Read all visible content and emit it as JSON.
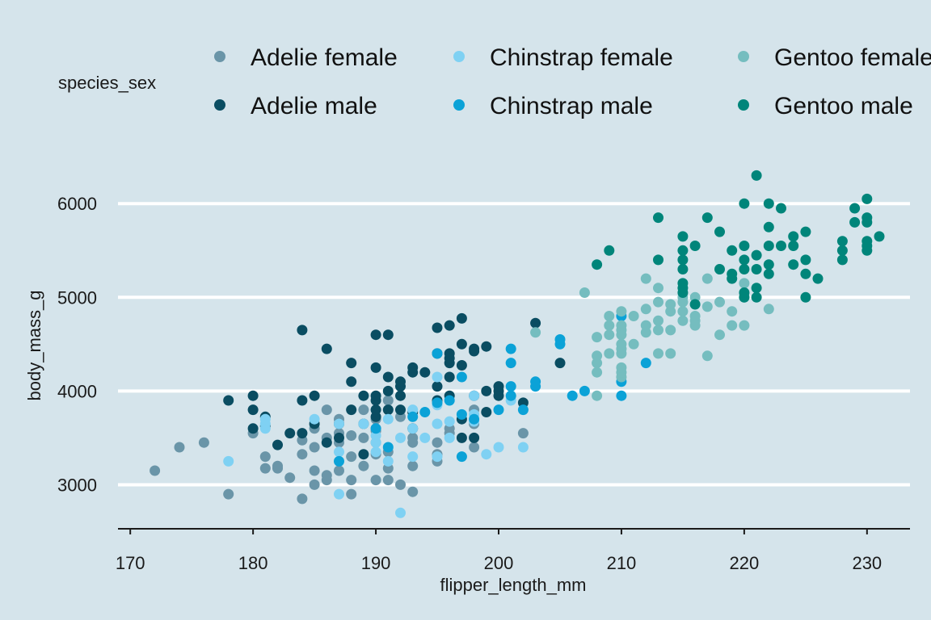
{
  "chart_data": {
    "type": "scatter",
    "xlabel": "flipper_length_mm",
    "ylabel": "body_mass_g",
    "xlim": [
      169,
      233.5
    ],
    "ylim": [
      2530,
      6450
    ],
    "x_ticks": [
      "170",
      "180",
      "190",
      "200",
      "210",
      "220",
      "230"
    ],
    "y_ticks": [
      "3000",
      "4000",
      "5000",
      "6000"
    ],
    "grid": "horizontal major lines",
    "legend_title": "species_sex",
    "legend_position": "top",
    "series": [
      {
        "name": "Adelie female",
        "color": "#6a95a8",
        "points": [
          [
            172,
            3150
          ],
          [
            174,
            3400
          ],
          [
            176,
            3450
          ],
          [
            178,
            2900
          ],
          [
            180,
            3550
          ],
          [
            181,
            3300
          ],
          [
            181,
            3175
          ],
          [
            182,
            3175
          ],
          [
            182,
            3200
          ],
          [
            183,
            3075
          ],
          [
            184,
            2850
          ],
          [
            184,
            3325
          ],
          [
            184,
            3475
          ],
          [
            185,
            3000
          ],
          [
            185,
            3150
          ],
          [
            185,
            3400
          ],
          [
            185,
            3600
          ],
          [
            186,
            3050
          ],
          [
            186,
            3100
          ],
          [
            186,
            3500
          ],
          [
            186,
            3800
          ],
          [
            187,
            3150
          ],
          [
            187,
            3450
          ],
          [
            187,
            3550
          ],
          [
            187,
            3700
          ],
          [
            188,
            2900
          ],
          [
            188,
            3050
          ],
          [
            188,
            3300
          ],
          [
            188,
            3525
          ],
          [
            189,
            3200
          ],
          [
            189,
            3500
          ],
          [
            189,
            3800
          ],
          [
            190,
            3050
          ],
          [
            190,
            3325
          ],
          [
            190,
            3450
          ],
          [
            190,
            3575
          ],
          [
            190,
            3600
          ],
          [
            190,
            3700
          ],
          [
            191,
            3050
          ],
          [
            191,
            3175
          ],
          [
            191,
            3350
          ],
          [
            191,
            3900
          ],
          [
            192,
            3000
          ],
          [
            192,
            3725
          ],
          [
            193,
            2925
          ],
          [
            193,
            3200
          ],
          [
            193,
            3450
          ],
          [
            193,
            3500
          ],
          [
            195,
            3250
          ],
          [
            195,
            3325
          ],
          [
            195,
            3450
          ],
          [
            196,
            3550
          ],
          [
            196,
            3600
          ],
          [
            198,
            3400
          ],
          [
            198,
            3650
          ],
          [
            198,
            3800
          ],
          [
            202,
            3550
          ]
        ]
      },
      {
        "name": "Adelie male",
        "color": "#0a4d62",
        "points": [
          [
            178,
            3900
          ],
          [
            180,
            3600
          ],
          [
            180,
            3800
          ],
          [
            180,
            3950
          ],
          [
            181,
            3625
          ],
          [
            181,
            3725
          ],
          [
            182,
            3425
          ],
          [
            183,
            3550
          ],
          [
            184,
            3550
          ],
          [
            184,
            3900
          ],
          [
            184,
            4650
          ],
          [
            185,
            3650
          ],
          [
            185,
            3950
          ],
          [
            186,
            3450
          ],
          [
            186,
            4450
          ],
          [
            187,
            3500
          ],
          [
            187,
            3650
          ],
          [
            188,
            3800
          ],
          [
            188,
            4100
          ],
          [
            188,
            4300
          ],
          [
            189,
            3325
          ],
          [
            189,
            3650
          ],
          [
            189,
            3950
          ],
          [
            190,
            3725
          ],
          [
            190,
            3800
          ],
          [
            190,
            3900
          ],
          [
            190,
            3950
          ],
          [
            190,
            4250
          ],
          [
            190,
            4600
          ],
          [
            191,
            3800
          ],
          [
            191,
            4000
          ],
          [
            191,
            4150
          ],
          [
            191,
            4600
          ],
          [
            192,
            3800
          ],
          [
            192,
            3950
          ],
          [
            192,
            4050
          ],
          [
            192,
            4100
          ],
          [
            193,
            3600
          ],
          [
            193,
            3775
          ],
          [
            193,
            4200
          ],
          [
            193,
            4250
          ],
          [
            194,
            4200
          ],
          [
            195,
            3900
          ],
          [
            195,
            4050
          ],
          [
            195,
            4400
          ],
          [
            195,
            4675
          ],
          [
            196,
            3950
          ],
          [
            196,
            4150
          ],
          [
            196,
            4300
          ],
          [
            196,
            4350
          ],
          [
            196,
            4400
          ],
          [
            196,
            4700
          ],
          [
            197,
            3500
          ],
          [
            197,
            3700
          ],
          [
            197,
            4275
          ],
          [
            197,
            4500
          ],
          [
            197,
            4775
          ],
          [
            198,
            3500
          ],
          [
            198,
            3950
          ],
          [
            198,
            4425
          ],
          [
            198,
            4450
          ],
          [
            199,
            3775
          ],
          [
            199,
            4000
          ],
          [
            199,
            4475
          ],
          [
            200,
            3950
          ],
          [
            200,
            4000
          ],
          [
            200,
            4050
          ],
          [
            202,
            3875
          ],
          [
            203,
            4725
          ],
          [
            205,
            4300
          ]
        ]
      },
      {
        "name": "Chinstrap female",
        "color": "#7fd1f3",
        "points": [
          [
            178,
            3250
          ],
          [
            181,
            3600
          ],
          [
            181,
            3650
          ],
          [
            181,
            3700
          ],
          [
            185,
            3700
          ],
          [
            187,
            2900
          ],
          [
            187,
            3350
          ],
          [
            187,
            3650
          ],
          [
            189,
            3650
          ],
          [
            190,
            3350
          ],
          [
            190,
            3450
          ],
          [
            190,
            3525
          ],
          [
            191,
            3250
          ],
          [
            191,
            3700
          ],
          [
            192,
            2700
          ],
          [
            192,
            3500
          ],
          [
            193,
            3300
          ],
          [
            193,
            3600
          ],
          [
            193,
            3800
          ],
          [
            194,
            3500
          ],
          [
            195,
            3300
          ],
          [
            195,
            3650
          ],
          [
            195,
            3850
          ],
          [
            195,
            4150
          ],
          [
            196,
            3500
          ],
          [
            196,
            3675
          ],
          [
            198,
            3675
          ],
          [
            198,
            3750
          ],
          [
            198,
            3950
          ],
          [
            199,
            3325
          ],
          [
            200,
            3400
          ],
          [
            201,
            3900
          ],
          [
            202,
            3400
          ]
        ]
      },
      {
        "name": "Chinstrap male",
        "color": "#0ba2d7",
        "points": [
          [
            187,
            3250
          ],
          [
            190,
            3600
          ],
          [
            191,
            3400
          ],
          [
            193,
            3725
          ],
          [
            194,
            3775
          ],
          [
            195,
            3875
          ],
          [
            195,
            4400
          ],
          [
            196,
            3900
          ],
          [
            197,
            3300
          ],
          [
            197,
            3750
          ],
          [
            197,
            4150
          ],
          [
            198,
            3700
          ],
          [
            200,
            3800
          ],
          [
            201,
            3950
          ],
          [
            201,
            4050
          ],
          [
            201,
            4300
          ],
          [
            201,
            4450
          ],
          [
            202,
            3800
          ],
          [
            203,
            4050
          ],
          [
            203,
            4100
          ],
          [
            205,
            4500
          ],
          [
            205,
            4550
          ],
          [
            206,
            3950
          ],
          [
            207,
            4000
          ],
          [
            210,
            3950
          ],
          [
            210,
            4100
          ],
          [
            210,
            4800
          ],
          [
            212,
            4300
          ]
        ]
      },
      {
        "name": "Gentoo female",
        "color": "#75bdbf",
        "points": [
          [
            203,
            4625
          ],
          [
            207,
            5050
          ],
          [
            208,
            3950
          ],
          [
            208,
            4200
          ],
          [
            208,
            4300
          ],
          [
            208,
            4375
          ],
          [
            208,
            4575
          ],
          [
            209,
            4400
          ],
          [
            209,
            4600
          ],
          [
            209,
            4700
          ],
          [
            209,
            4800
          ],
          [
            210,
            4150
          ],
          [
            210,
            4200
          ],
          [
            210,
            4250
          ],
          [
            210,
            4400
          ],
          [
            210,
            4450
          ],
          [
            210,
            4500
          ],
          [
            210,
            4600
          ],
          [
            210,
            4650
          ],
          [
            210,
            4700
          ],
          [
            210,
            4850
          ],
          [
            211,
            4500
          ],
          [
            211,
            4800
          ],
          [
            212,
            4625
          ],
          [
            212,
            4700
          ],
          [
            212,
            4875
          ],
          [
            212,
            5200
          ],
          [
            213,
            4400
          ],
          [
            213,
            4650
          ],
          [
            213,
            4750
          ],
          [
            213,
            4950
          ],
          [
            213,
            5100
          ],
          [
            214,
            4400
          ],
          [
            214,
            4650
          ],
          [
            214,
            4850
          ],
          [
            214,
            4925
          ],
          [
            215,
            4750
          ],
          [
            215,
            4850
          ],
          [
            215,
            4950
          ],
          [
            215,
            5000
          ],
          [
            216,
            4700
          ],
          [
            216,
            4750
          ],
          [
            216,
            4800
          ],
          [
            216,
            5000
          ],
          [
            217,
            4375
          ],
          [
            217,
            4900
          ],
          [
            217,
            5200
          ],
          [
            218,
            4600
          ],
          [
            218,
            4950
          ],
          [
            219,
            4700
          ],
          [
            219,
            4850
          ],
          [
            220,
            4700
          ],
          [
            220,
            5000
          ],
          [
            220,
            5150
          ],
          [
            222,
            4875
          ]
        ]
      },
      {
        "name": "Gentoo male",
        "color": "#00857a",
        "points": [
          [
            208,
            5350
          ],
          [
            209,
            5500
          ],
          [
            213,
            5400
          ],
          [
            213,
            5850
          ],
          [
            215,
            5050
          ],
          [
            215,
            5100
          ],
          [
            215,
            5150
          ],
          [
            215,
            5300
          ],
          [
            215,
            5400
          ],
          [
            215,
            5500
          ],
          [
            215,
            5650
          ],
          [
            216,
            4925
          ],
          [
            216,
            5550
          ],
          [
            217,
            5850
          ],
          [
            218,
            5300
          ],
          [
            218,
            5700
          ],
          [
            219,
            5200
          ],
          [
            219,
            5250
          ],
          [
            219,
            5500
          ],
          [
            220,
            5000
          ],
          [
            220,
            5050
          ],
          [
            220,
            5300
          ],
          [
            220,
            5400
          ],
          [
            220,
            5550
          ],
          [
            220,
            6000
          ],
          [
            221,
            5000
          ],
          [
            221,
            5100
          ],
          [
            221,
            5300
          ],
          [
            221,
            5450
          ],
          [
            221,
            6300
          ],
          [
            222,
            5250
          ],
          [
            222,
            5350
          ],
          [
            222,
            5550
          ],
          [
            222,
            5750
          ],
          [
            222,
            6000
          ],
          [
            223,
            5550
          ],
          [
            223,
            5950
          ],
          [
            224,
            5350
          ],
          [
            224,
            5550
          ],
          [
            224,
            5650
          ],
          [
            225,
            5000
          ],
          [
            225,
            5250
          ],
          [
            225,
            5400
          ],
          [
            225,
            5700
          ],
          [
            226,
            5200
          ],
          [
            228,
            5400
          ],
          [
            228,
            5500
          ],
          [
            228,
            5600
          ],
          [
            229,
            5800
          ],
          [
            229,
            5950
          ],
          [
            230,
            5500
          ],
          [
            230,
            5550
          ],
          [
            230,
            5600
          ],
          [
            230,
            5800
          ],
          [
            230,
            5850
          ],
          [
            230,
            6050
          ],
          [
            231,
            5650
          ]
        ]
      }
    ]
  }
}
